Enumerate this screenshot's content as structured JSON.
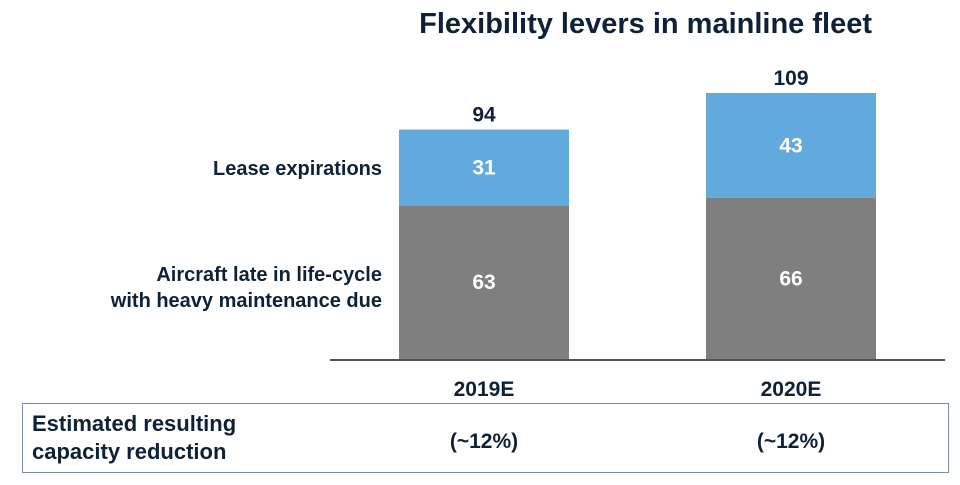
{
  "title": "Flexibility levers in mainline fleet",
  "chart_data": {
    "type": "bar",
    "stacked": true,
    "categories": [
      "2019E",
      "2020E"
    ],
    "series": [
      {
        "name": "Aircraft late in life-cycle with heavy maintenance due",
        "values": [
          63,
          66
        ],
        "color": "#7f7f7f"
      },
      {
        "name": "Lease expirations",
        "values": [
          31,
          43
        ],
        "color": "#62a9dd"
      }
    ],
    "totals": [
      94,
      109
    ],
    "ylim": [
      0,
      109
    ],
    "legend_placement": "left",
    "grid": false
  },
  "legend": {
    "lease_line1": "Lease expirations",
    "aircraft_line1": "Aircraft late in life-cycle",
    "aircraft_line2": "with heavy maintenance due"
  },
  "footer": {
    "label_line1": "Estimated resulting",
    "label_line2": "capacity reduction",
    "values": [
      "(~12%)",
      "(~12%)"
    ]
  }
}
